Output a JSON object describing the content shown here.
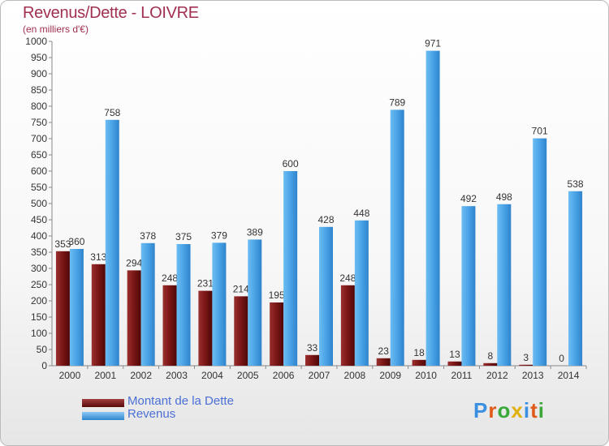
{
  "header": {
    "title": "Revenus/Dette - LOIVRE",
    "subtitle": "(en milliers d'€)"
  },
  "legend": {
    "items": [
      {
        "label": "Montant de la Dette",
        "color": "#7a1515"
      },
      {
        "label": "Revenus",
        "color": "#4aa3e6"
      }
    ]
  },
  "logo": {
    "letters": [
      "P",
      "r",
      "o",
      "x",
      "i",
      "t",
      "i"
    ],
    "colors": [
      "#3a8fe0",
      "#e05a1a",
      "#39a839",
      "#e0b010",
      "#3a8fe0",
      "#e05a1a",
      "#39a839"
    ]
  },
  "chart_data": {
    "type": "bar",
    "title": "Revenus/Dette - LOIVRE",
    "subtitle": "(en milliers d'€)",
    "categories": [
      "2000",
      "2001",
      "2002",
      "2003",
      "2004",
      "2005",
      "2006",
      "2007",
      "2008",
      "2009",
      "2010",
      "2011",
      "2012",
      "2013",
      "2014"
    ],
    "series": [
      {
        "name": "Montant de la Dette",
        "color": "#7a1515",
        "values": [
          353,
          313,
          294,
          248,
          231,
          214,
          195,
          33,
          248,
          23,
          18,
          13,
          8,
          3,
          0
        ]
      },
      {
        "name": "Revenus",
        "color": "#4aa3e6",
        "values": [
          360,
          758,
          378,
          375,
          379,
          389,
          600,
          428,
          448,
          789,
          971,
          492,
          498,
          701,
          538
        ]
      }
    ],
    "ylim": [
      0,
      1000
    ],
    "ytick_step": 50,
    "grid": false,
    "legend_position": "bottom-left"
  }
}
